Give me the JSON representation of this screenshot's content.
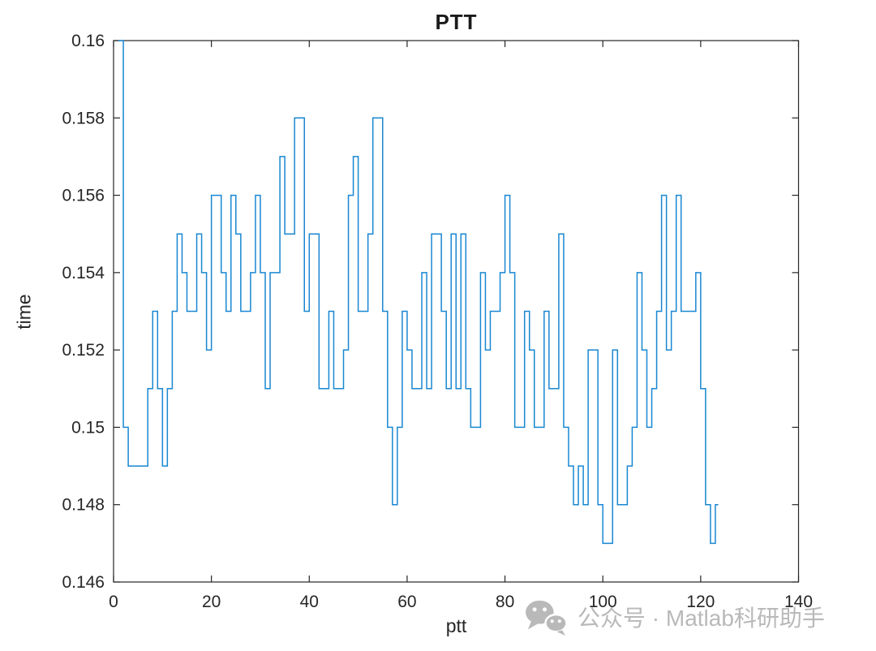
{
  "figure": {
    "title": "PTT",
    "xlabel": "ptt",
    "ylabel": "time"
  },
  "axes": {
    "axis_color": "#262626",
    "tick_label_color": "#262626",
    "x_tick_labels": [
      "0",
      "20",
      "40",
      "60",
      "80",
      "100",
      "120",
      "140"
    ],
    "y_tick_labels": [
      "0.146",
      "0.148",
      "0.15",
      "0.152",
      "0.154",
      "0.156",
      "0.158",
      "0.16"
    ]
  },
  "watermark": {
    "icon": "wechat-icon",
    "text": "公众号 · Matlab科研助手",
    "color": "#b9b9b9"
  },
  "chart_data": {
    "type": "line",
    "subtype": "stairs",
    "title": "PTT",
    "xlabel": "ptt",
    "ylabel": "time",
    "xlim": [
      0,
      140
    ],
    "ylim": [
      0.146,
      0.16
    ],
    "x_ticks": [
      0,
      20,
      40,
      60,
      80,
      100,
      120,
      140
    ],
    "y_ticks": [
      0.146,
      0.148,
      0.15,
      0.152,
      0.154,
      0.156,
      0.158,
      0.16
    ],
    "grid": false,
    "legend": null,
    "line_color": "#1987d2",
    "x_start": 1,
    "values": [
      0.16,
      0.15,
      0.149,
      0.149,
      0.149,
      0.149,
      0.151,
      0.153,
      0.151,
      0.149,
      0.151,
      0.153,
      0.155,
      0.154,
      0.153,
      0.153,
      0.155,
      0.154,
      0.152,
      0.156,
      0.156,
      0.154,
      0.153,
      0.156,
      0.155,
      0.153,
      0.153,
      0.154,
      0.156,
      0.154,
      0.151,
      0.154,
      0.154,
      0.157,
      0.155,
      0.155,
      0.158,
      0.158,
      0.153,
      0.155,
      0.155,
      0.151,
      0.151,
      0.153,
      0.151,
      0.151,
      0.152,
      0.156,
      0.157,
      0.153,
      0.153,
      0.155,
      0.158,
      0.158,
      0.153,
      0.15,
      0.148,
      0.15,
      0.153,
      0.152,
      0.151,
      0.151,
      0.154,
      0.151,
      0.155,
      0.155,
      0.153,
      0.151,
      0.155,
      0.151,
      0.155,
      0.151,
      0.15,
      0.15,
      0.154,
      0.152,
      0.153,
      0.153,
      0.154,
      0.156,
      0.154,
      0.15,
      0.15,
      0.153,
      0.152,
      0.15,
      0.15,
      0.153,
      0.151,
      0.151,
      0.155,
      0.15,
      0.149,
      0.148,
      0.149,
      0.148,
      0.152,
      0.152,
      0.148,
      0.147,
      0.147,
      0.152,
      0.148,
      0.148,
      0.149,
      0.15,
      0.154,
      0.152,
      0.15,
      0.151,
      0.153,
      0.156,
      0.152,
      0.153,
      0.156,
      0.153,
      0.153,
      0.153,
      0.154,
      0.151,
      0.148,
      0.147,
      0.148
    ]
  }
}
